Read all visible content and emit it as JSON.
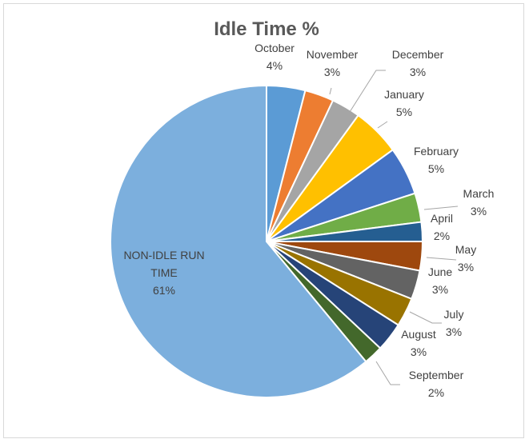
{
  "chart_data": {
    "type": "pie",
    "title": "Idle Time %",
    "legend": "none",
    "slices": [
      {
        "name": "October",
        "label": "4%",
        "value": 4,
        "color": "#5B9BD5"
      },
      {
        "name": "November",
        "label": "3%",
        "value": 3,
        "color": "#ED7D31"
      },
      {
        "name": "December",
        "label": "3%",
        "value": 3,
        "color": "#A5A5A5"
      },
      {
        "name": "January",
        "label": "5%",
        "value": 5,
        "color": "#FFC000"
      },
      {
        "name": "February",
        "label": "5%",
        "value": 5,
        "color": "#4472C4"
      },
      {
        "name": "March",
        "label": "3%",
        "value": 3,
        "color": "#70AD47"
      },
      {
        "name": "April",
        "label": "2%",
        "value": 2,
        "color": "#255E91"
      },
      {
        "name": "May",
        "label": "3%",
        "value": 3,
        "color": "#9E480E"
      },
      {
        "name": "June",
        "label": "3%",
        "value": 3,
        "color": "#636363"
      },
      {
        "name": "July",
        "label": "3%",
        "value": 3,
        "color": "#997300"
      },
      {
        "name": "August",
        "label": "3%",
        "value": 3,
        "color": "#264478"
      },
      {
        "name": "September",
        "label": "2%",
        "value": 2,
        "color": "#43682B"
      },
      {
        "name": "NON-IDLE RUN TIME",
        "label": "61%",
        "value": 61,
        "color": "#7CAFDD"
      }
    ]
  }
}
